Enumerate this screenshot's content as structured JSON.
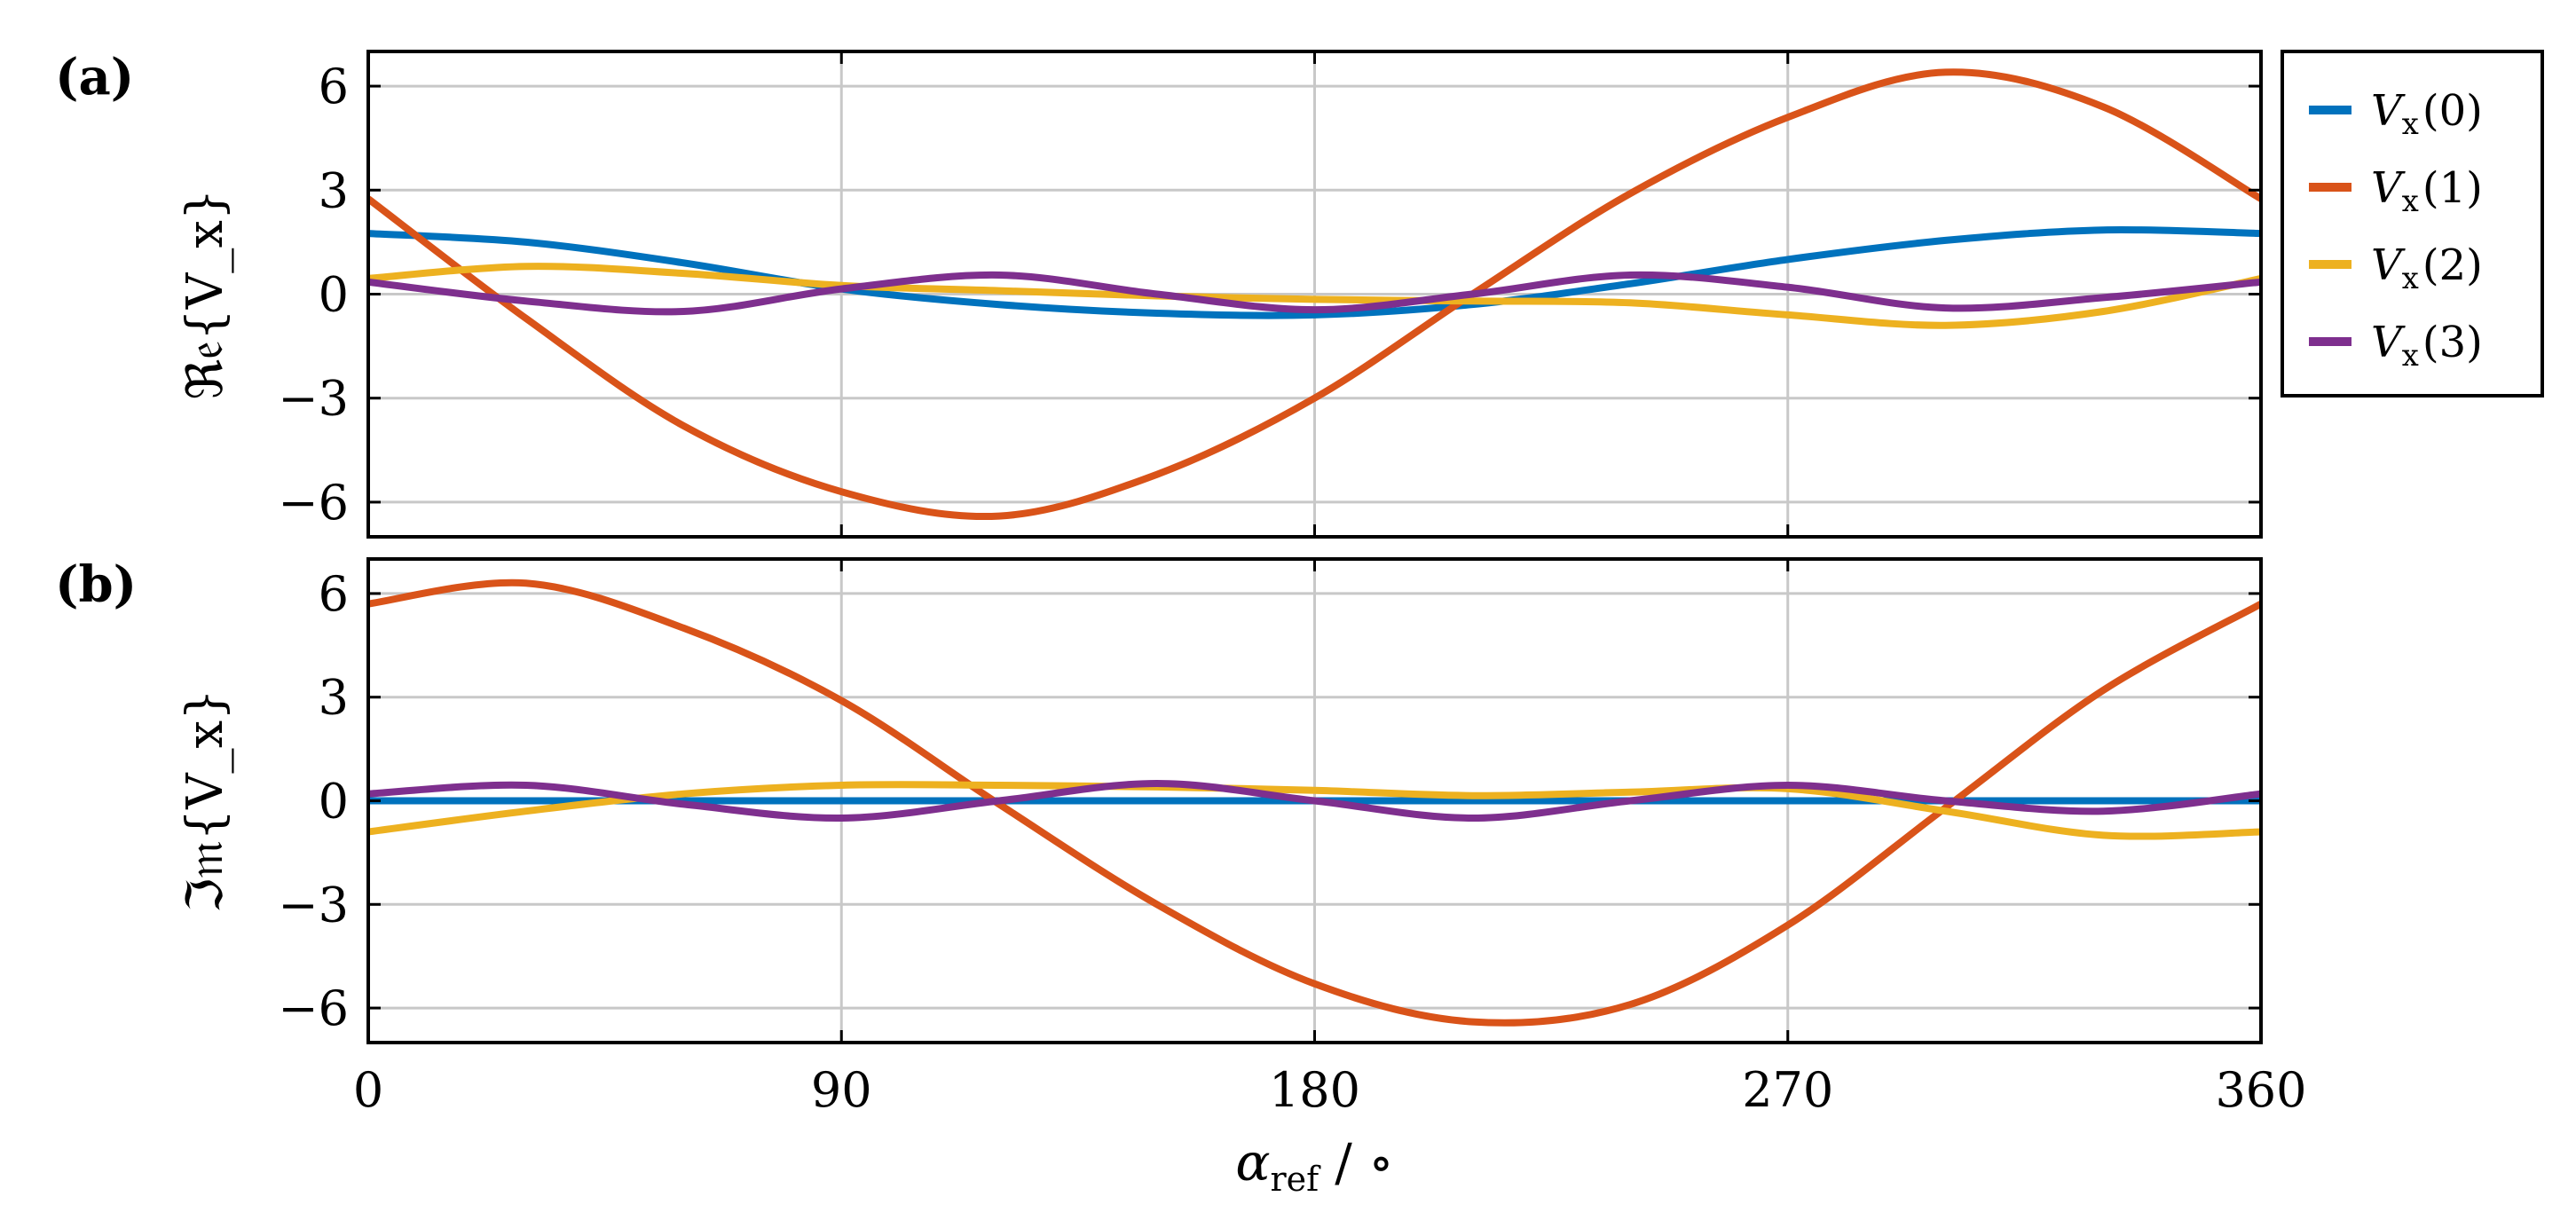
{
  "chart_data": [
    {
      "type": "line",
      "panel_label": "(a)",
      "ylabel": "ℜ𝔢{V_x}",
      "xlim": [
        0,
        360
      ],
      "ylim": [
        -7,
        7
      ],
      "xticks": [
        0,
        90,
        180,
        270,
        360
      ],
      "yticks": [
        -6,
        -3,
        0,
        3,
        6
      ],
      "ytick_labels": [
        "−6",
        "−3",
        "0",
        "3",
        "6"
      ],
      "grid": true,
      "x": [
        0,
        30,
        60,
        90,
        120,
        150,
        180,
        210,
        240,
        270,
        300,
        330,
        360
      ],
      "series": [
        {
          "name": "V_x(0)",
          "color": "#0072BD",
          "values": [
            1.75,
            1.5,
            0.9,
            0.15,
            -0.3,
            -0.55,
            -0.6,
            -0.3,
            0.3,
            1.0,
            1.55,
            1.85,
            1.75
          ]
        },
        {
          "name": "V_x(1)",
          "color": "#D95319",
          "values": [
            2.75,
            -0.7,
            -3.8,
            -5.7,
            -6.4,
            -5.2,
            -3.0,
            0.0,
            2.9,
            5.1,
            6.4,
            5.4,
            2.75
          ]
        },
        {
          "name": "V_x(2)",
          "color": "#EDB120",
          "values": [
            0.45,
            0.8,
            0.6,
            0.25,
            0.1,
            -0.05,
            -0.15,
            -0.2,
            -0.25,
            -0.6,
            -0.9,
            -0.5,
            0.45
          ]
        },
        {
          "name": "V_x(3)",
          "color": "#7E2F8E",
          "values": [
            0.35,
            -0.2,
            -0.5,
            0.15,
            0.55,
            0.0,
            -0.45,
            0.0,
            0.55,
            0.2,
            -0.4,
            -0.1,
            0.35
          ]
        }
      ]
    },
    {
      "type": "line",
      "panel_label": "(b)",
      "ylabel": "ℑ𝔪{V_x}",
      "xlabel_symbol": "α",
      "xlabel_sub": "ref",
      "xlabel_unit": "/ ∘",
      "xlim": [
        0,
        360
      ],
      "ylim": [
        -7,
        7
      ],
      "xticks": [
        0,
        90,
        180,
        270,
        360
      ],
      "yticks": [
        -6,
        -3,
        0,
        3,
        6
      ],
      "ytick_labels": [
        "−6",
        "−3",
        "0",
        "3",
        "6"
      ],
      "grid": true,
      "x": [
        0,
        30,
        60,
        90,
        120,
        150,
        180,
        210,
        240,
        270,
        300,
        330,
        360
      ],
      "series": [
        {
          "name": "V_x(0)",
          "color": "#0072BD",
          "values": [
            0,
            0,
            0,
            0,
            0,
            0,
            0,
            0,
            0,
            0,
            0,
            0,
            0
          ]
        },
        {
          "name": "V_x(1)",
          "color": "#D95319",
          "values": [
            5.7,
            6.3,
            5.0,
            2.9,
            -0.1,
            -3.0,
            -5.3,
            -6.4,
            -5.9,
            -3.6,
            -0.2,
            3.2,
            5.7
          ]
        },
        {
          "name": "V_x(2)",
          "color": "#EDB120",
          "values": [
            -0.9,
            -0.3,
            0.2,
            0.45,
            0.45,
            0.4,
            0.3,
            0.15,
            0.25,
            0.35,
            -0.3,
            -1.0,
            -0.9
          ]
        },
        {
          "name": "V_x(3)",
          "color": "#7E2F8E",
          "values": [
            0.2,
            0.45,
            -0.1,
            -0.5,
            0.0,
            0.5,
            0.0,
            -0.5,
            0.0,
            0.45,
            0.0,
            -0.3,
            0.2
          ]
        }
      ]
    }
  ],
  "legend": {
    "position": "right-top",
    "entries": [
      {
        "symbol": "V",
        "sub": "x",
        "arg": "(0)",
        "color": "#0072BD"
      },
      {
        "symbol": "V",
        "sub": "x",
        "arg": "(1)",
        "color": "#D95319"
      },
      {
        "symbol": "V",
        "sub": "x",
        "arg": "(2)",
        "color": "#EDB120"
      },
      {
        "symbol": "V",
        "sub": "x",
        "arg": "(3)",
        "color": "#7E2F8E"
      }
    ]
  }
}
